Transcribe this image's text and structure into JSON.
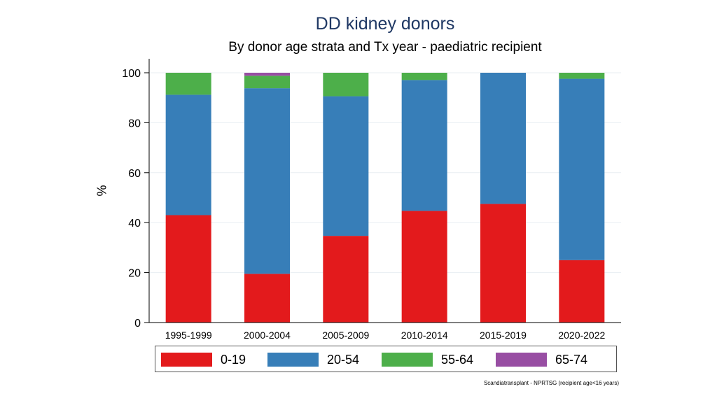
{
  "chart_data": {
    "type": "bar",
    "stacked": true,
    "title": "DD kidney donors",
    "subtitle": "By donor age strata and Tx year - paediatric recipient",
    "xlabel": "",
    "ylabel": "%",
    "ylim": [
      0,
      100
    ],
    "yticks": [
      "0",
      "20",
      "40",
      "60",
      "80",
      "100"
    ],
    "categories": [
      "1995-1999",
      "2000-2004",
      "2005-2009",
      "2010-2014",
      "2015-2019",
      "2020-2022"
    ],
    "series": [
      {
        "name": "0-19",
        "color": "#e31a1c",
        "values": [
          43,
          19.5,
          34.7,
          44.7,
          47.5,
          25
        ]
      },
      {
        "name": "20-54",
        "color": "#377eb8",
        "values": [
          48.2,
          74.3,
          55.9,
          52.4,
          52.5,
          72.6
        ]
      },
      {
        "name": "55-64",
        "color": "#4daf4a",
        "values": [
          8.8,
          5,
          9.4,
          2.9,
          0,
          2.4
        ]
      },
      {
        "name": "65-74",
        "color": "#984ea3",
        "values": [
          0,
          1.2,
          0,
          0,
          0,
          0
        ]
      }
    ],
    "legend": "bottom",
    "grid": true
  },
  "footnote": "Scandiatransplant - NPRTSG (recipient age<16 years)"
}
